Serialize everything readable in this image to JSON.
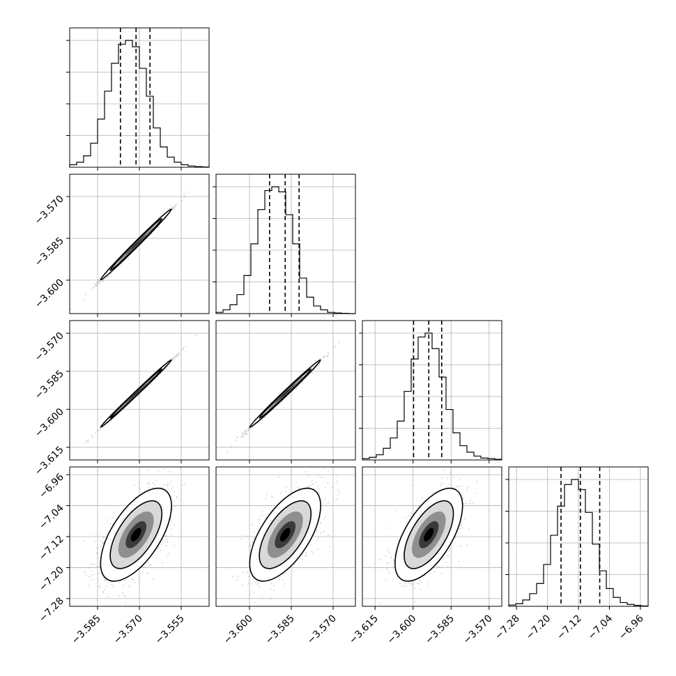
{
  "chart_data": {
    "type": "corner",
    "title": "",
    "grid": true,
    "quantile_style": "dashed",
    "parameters": [
      {
        "index": 0,
        "range": [
          -3.595,
          -3.545
        ],
        "ticks": [
          -3.585,
          -3.57,
          -3.555
        ],
        "tick_labels": [
          "−3.585",
          "−3.570",
          "−3.555"
        ],
        "quantiles": [
          -3.5768,
          -3.5712,
          -3.5662
        ],
        "hist": [
          0.02,
          0.04,
          0.09,
          0.19,
          0.38,
          0.6,
          0.82,
          0.97,
          1.0,
          0.95,
          0.78,
          0.56,
          0.31,
          0.16,
          0.08,
          0.04,
          0.02,
          0.01,
          0.005,
          0.002
        ]
      },
      {
        "index": 1,
        "range": [
          -3.612,
          -3.562
        ],
        "ticks": [
          -3.6,
          -3.585,
          -3.57
        ],
        "tick_labels": [
          "−3.600",
          "−3.585",
          "−3.570"
        ],
        "quantiles": [
          -3.5928,
          -3.5872,
          -3.5822
        ],
        "hist": [
          0.01,
          0.03,
          0.07,
          0.15,
          0.3,
          0.55,
          0.82,
          0.97,
          1.0,
          0.96,
          0.78,
          0.55,
          0.28,
          0.13,
          0.06,
          0.03,
          0.01,
          0.005,
          0.002,
          0.0
        ]
      },
      {
        "index": 2,
        "range": [
          -3.62,
          -3.565
        ],
        "ticks": [
          -3.615,
          -3.6,
          -3.585,
          -3.57
        ],
        "tick_labels": [
          "−3.615",
          "−3.600",
          "−3.585",
          "−3.570"
        ],
        "quantiles": [
          -3.5998,
          -3.5938,
          -3.5887
        ],
        "hist": [
          0.01,
          0.02,
          0.04,
          0.09,
          0.17,
          0.3,
          0.53,
          0.78,
          0.95,
          0.98,
          0.86,
          0.64,
          0.39,
          0.21,
          0.11,
          0.06,
          0.03,
          0.015,
          0.01,
          0.005
        ]
      },
      {
        "index": 3,
        "range": [
          -7.3,
          -6.94
        ],
        "ticks": [
          -7.28,
          -7.2,
          -7.12,
          -7.04,
          -6.96
        ],
        "tick_labels": [
          "−7.28",
          "−7.20",
          "−7.12",
          "−7.04",
          "−6.96"
        ],
        "quantiles": [
          -7.165,
          -7.115,
          -7.065
        ],
        "hist": [
          0.01,
          0.02,
          0.05,
          0.1,
          0.18,
          0.33,
          0.56,
          0.79,
          0.96,
          1.0,
          0.92,
          0.74,
          0.49,
          0.28,
          0.14,
          0.07,
          0.03,
          0.015,
          0.007,
          0.003
        ]
      }
    ],
    "y_ticks": {
      "1": {
        "ticks": [
          -3.57,
          -3.585,
          -3.6
        ],
        "tick_labels": [
          "−3.570",
          "−3.585",
          "−3.600"
        ]
      },
      "2": {
        "ticks": [
          -3.57,
          -3.585,
          -3.6,
          -3.615
        ],
        "tick_labels": [
          "−3.570",
          "−3.585",
          "−3.600",
          "−3.615"
        ]
      },
      "3": {
        "ticks": [
          -6.96,
          -7.04,
          -7.12,
          -7.2,
          -7.28
        ],
        "tick_labels": [
          "−6.96",
          "−7.04",
          "−7.12",
          "−7.20",
          "−7.28"
        ]
      }
    },
    "correlations": [
      {
        "x": 0,
        "y": 1,
        "corr": 0.995
      },
      {
        "x": 0,
        "y": 2,
        "corr": 0.997
      },
      {
        "x": 1,
        "y": 2,
        "corr": 0.995
      },
      {
        "x": 0,
        "y": 3,
        "corr": 0.62
      },
      {
        "x": 1,
        "y": 3,
        "corr": 0.62
      },
      {
        "x": 2,
        "y": 3,
        "corr": 0.62
      }
    ]
  }
}
